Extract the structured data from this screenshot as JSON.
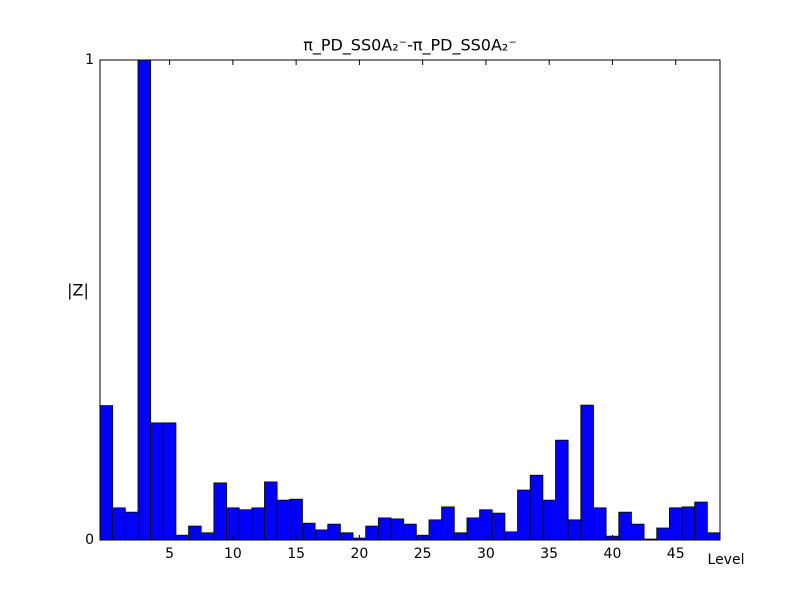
{
  "chart_data": {
    "type": "bar",
    "title": "π_PD_SS0A₂⁻-π_PD_SS0A₂⁻",
    "xlabel": "Level",
    "ylabel": "|Z|",
    "x": [
      0,
      1,
      2,
      3,
      4,
      5,
      6,
      7,
      8,
      9,
      10,
      11,
      12,
      13,
      14,
      15,
      16,
      17,
      18,
      19,
      20,
      21,
      22,
      23,
      24,
      25,
      26,
      27,
      28,
      29,
      30,
      31,
      32,
      33,
      34,
      35,
      36,
      37,
      38,
      39,
      40,
      41,
      42,
      43,
      44,
      45,
      46,
      47,
      48
    ],
    "values": [
      0.28,
      0.067,
      0.058,
      1.0,
      0.244,
      0.244,
      0.01,
      0.029,
      0.015,
      0.119,
      0.067,
      0.063,
      0.067,
      0.121,
      0.083,
      0.085,
      0.035,
      0.021,
      0.033,
      0.015,
      0.004,
      0.029,
      0.046,
      0.044,
      0.033,
      0.01,
      0.042,
      0.069,
      0.015,
      0.046,
      0.063,
      0.056,
      0.017,
      0.104,
      0.135,
      0.083,
      0.208,
      0.042,
      0.281,
      0.067,
      0.008,
      0.058,
      0.033,
      0.002,
      0.025,
      0.067,
      0.069,
      0.079,
      0.015
    ],
    "color": "#0000ff",
    "xlim": [
      -0.5,
      48.5
    ],
    "xticks": [
      5,
      10,
      15,
      20,
      25,
      30,
      35,
      40,
      45
    ],
    "ylim": [
      0,
      1
    ],
    "yticks": [
      0,
      1
    ],
    "grid": false
  }
}
